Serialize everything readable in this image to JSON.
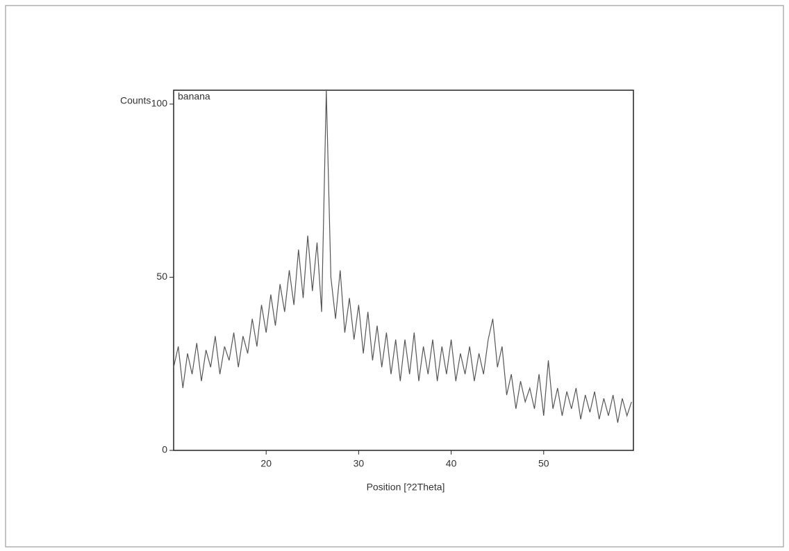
{
  "chart_data": {
    "type": "line",
    "y_label": "Counts",
    "x_label": "Position [?2Theta]",
    "annotation": "banana",
    "color": "#555555",
    "xlim": [
      10,
      59.7
    ],
    "ylim": [
      0,
      104
    ],
    "xticks": [
      20,
      30,
      40,
      50
    ],
    "yticks": [
      0,
      50,
      100
    ],
    "x": [
      10,
      10.5,
      11,
      11.5,
      12,
      12.5,
      13,
      13.5,
      14,
      14.5,
      15,
      15.5,
      16,
      16.5,
      17,
      17.5,
      18,
      18.5,
      19,
      19.5,
      20,
      20.5,
      21,
      21.5,
      22,
      22.5,
      23,
      23.5,
      24,
      24.5,
      25,
      25.5,
      26,
      26.5,
      27,
      27.5,
      28,
      28.5,
      29,
      29.5,
      30,
      30.5,
      31,
      31.5,
      32,
      32.5,
      33,
      33.5,
      34,
      34.5,
      35,
      35.5,
      36,
      36.5,
      37,
      37.5,
      38,
      38.5,
      39,
      39.5,
      40,
      40.5,
      41,
      41.5,
      42,
      42.5,
      43,
      43.5,
      44,
      44.5,
      45,
      45.5,
      46,
      46.5,
      47,
      47.5,
      48,
      48.5,
      49,
      49.5,
      50,
      50.5,
      51,
      51.5,
      52,
      52.5,
      53,
      53.5,
      54,
      54.5,
      55,
      55.5,
      56,
      56.5,
      57,
      57.5,
      58,
      58.5,
      59,
      59.5
    ],
    "values": [
      24,
      30,
      18,
      28,
      22,
      31,
      20,
      29,
      24,
      33,
      22,
      30,
      26,
      34,
      24,
      33,
      28,
      38,
      30,
      42,
      34,
      45,
      36,
      48,
      40,
      52,
      42,
      58,
      44,
      62,
      46,
      60,
      40,
      104,
      50,
      38,
      52,
      34,
      44,
      32,
      42,
      28,
      40,
      26,
      36,
      24,
      34,
      22,
      32,
      20,
      32,
      22,
      34,
      20,
      30,
      22,
      32,
      20,
      30,
      22,
      32,
      20,
      28,
      22,
      30,
      20,
      28,
      22,
      32,
      38,
      24,
      30,
      16,
      22,
      12,
      20,
      14,
      18,
      12,
      22,
      10,
      26,
      12,
      18,
      10,
      17,
      12,
      18,
      9,
      16,
      11,
      17,
      9,
      15,
      10,
      16,
      8,
      15,
      10,
      14
    ]
  }
}
